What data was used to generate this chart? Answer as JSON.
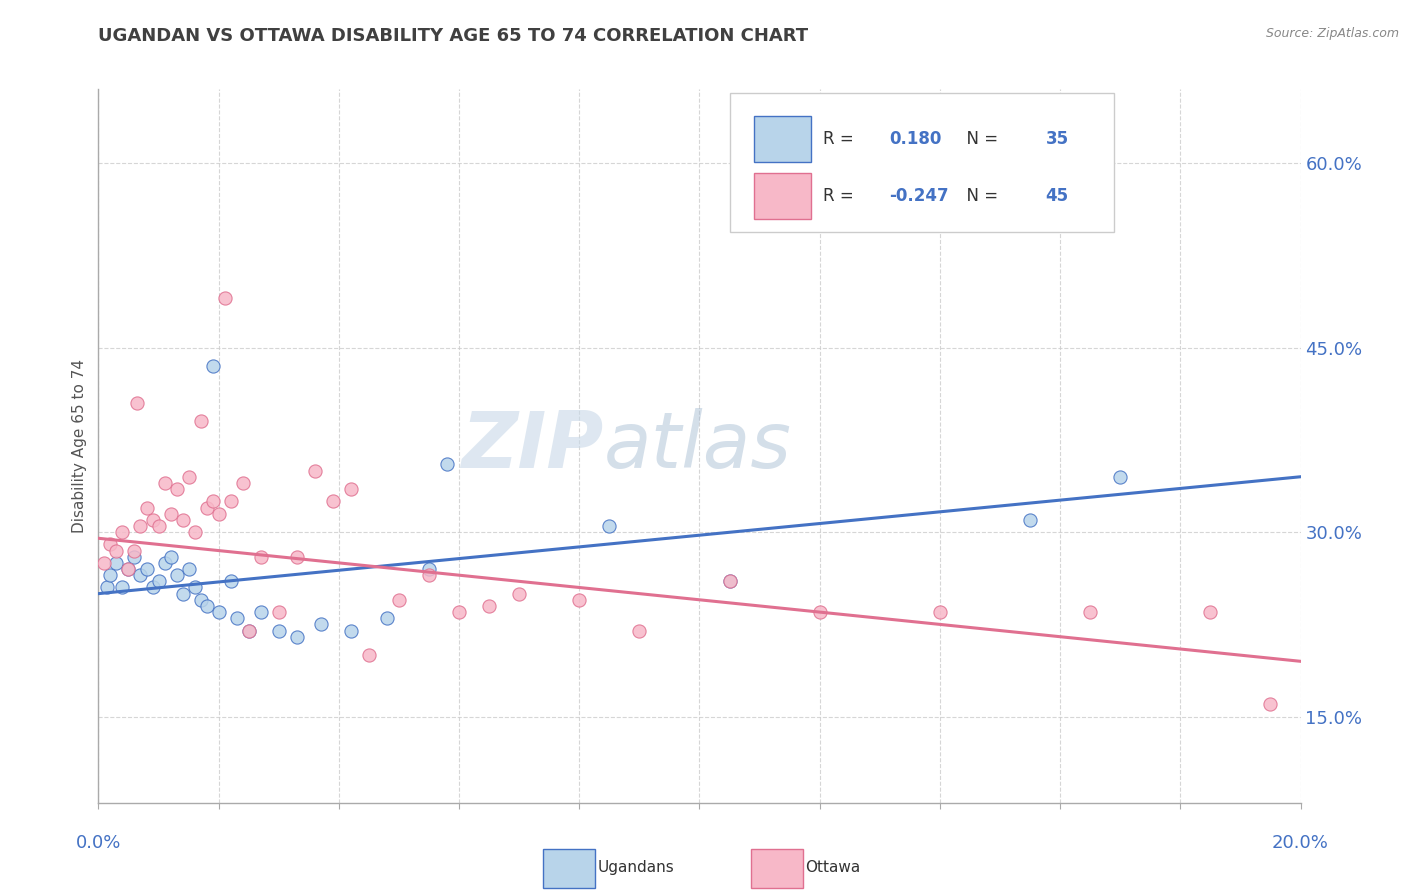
{
  "title": "UGANDAN VS OTTAWA DISABILITY AGE 65 TO 74 CORRELATION CHART",
  "source": "Source: ZipAtlas.com",
  "ylabel_label": "Disability Age 65 to 74",
  "xmin": 0.0,
  "xmax": 20.0,
  "ymin": 8.0,
  "ymax": 66.0,
  "yticks": [
    15.0,
    30.0,
    45.0,
    60.0
  ],
  "ugandan_color": "#b8d4ea",
  "ottawa_color": "#f7b8c8",
  "ugandan_line_color": "#4472c4",
  "ottawa_line_color": "#e07090",
  "legend_r_ugandan": "0.180",
  "legend_n_ugandan": "35",
  "legend_r_ottawa": "-0.247",
  "legend_n_ottawa": "45",
  "watermark_zip": "ZIP",
  "watermark_atlas": "atlas",
  "background_color": "#ffffff",
  "grid_color": "#cccccc",
  "title_color": "#404040",
  "tick_label_color": "#4472c4",
  "ugandan_points": [
    [
      0.15,
      25.5
    ],
    [
      0.2,
      26.5
    ],
    [
      0.3,
      27.5
    ],
    [
      0.4,
      25.5
    ],
    [
      0.5,
      27.0
    ],
    [
      0.6,
      28.0
    ],
    [
      0.7,
      26.5
    ],
    [
      0.8,
      27.0
    ],
    [
      0.9,
      25.5
    ],
    [
      1.0,
      26.0
    ],
    [
      1.1,
      27.5
    ],
    [
      1.2,
      28.0
    ],
    [
      1.3,
      26.5
    ],
    [
      1.4,
      25.0
    ],
    [
      1.5,
      27.0
    ],
    [
      1.6,
      25.5
    ],
    [
      1.7,
      24.5
    ],
    [
      1.8,
      24.0
    ],
    [
      1.9,
      43.5
    ],
    [
      2.0,
      23.5
    ],
    [
      2.2,
      26.0
    ],
    [
      2.3,
      23.0
    ],
    [
      2.5,
      22.0
    ],
    [
      2.7,
      23.5
    ],
    [
      3.0,
      22.0
    ],
    [
      3.3,
      21.5
    ],
    [
      3.7,
      22.5
    ],
    [
      4.2,
      22.0
    ],
    [
      4.8,
      23.0
    ],
    [
      5.5,
      27.0
    ],
    [
      5.8,
      35.5
    ],
    [
      8.5,
      30.5
    ],
    [
      10.5,
      26.0
    ],
    [
      15.5,
      31.0
    ],
    [
      17.0,
      34.5
    ]
  ],
  "ottawa_points": [
    [
      0.1,
      27.5
    ],
    [
      0.2,
      29.0
    ],
    [
      0.3,
      28.5
    ],
    [
      0.4,
      30.0
    ],
    [
      0.5,
      27.0
    ],
    [
      0.6,
      28.5
    ],
    [
      0.65,
      40.5
    ],
    [
      0.7,
      30.5
    ],
    [
      0.8,
      32.0
    ],
    [
      0.9,
      31.0
    ],
    [
      1.0,
      30.5
    ],
    [
      1.1,
      34.0
    ],
    [
      1.2,
      31.5
    ],
    [
      1.3,
      33.5
    ],
    [
      1.4,
      31.0
    ],
    [
      1.5,
      34.5
    ],
    [
      1.6,
      30.0
    ],
    [
      1.7,
      39.0
    ],
    [
      1.8,
      32.0
    ],
    [
      1.9,
      32.5
    ],
    [
      2.0,
      31.5
    ],
    [
      2.1,
      49.0
    ],
    [
      2.2,
      32.5
    ],
    [
      2.4,
      34.0
    ],
    [
      2.5,
      22.0
    ],
    [
      2.7,
      28.0
    ],
    [
      3.0,
      23.5
    ],
    [
      3.3,
      28.0
    ],
    [
      3.6,
      35.0
    ],
    [
      3.9,
      32.5
    ],
    [
      4.2,
      33.5
    ],
    [
      4.5,
      20.0
    ],
    [
      5.0,
      24.5
    ],
    [
      5.5,
      26.5
    ],
    [
      6.0,
      23.5
    ],
    [
      6.5,
      24.0
    ],
    [
      7.0,
      25.0
    ],
    [
      8.0,
      24.5
    ],
    [
      9.0,
      22.0
    ],
    [
      10.5,
      26.0
    ],
    [
      12.0,
      23.5
    ],
    [
      14.0,
      23.5
    ],
    [
      16.5,
      23.5
    ],
    [
      18.5,
      23.5
    ],
    [
      19.5,
      16.0
    ]
  ],
  "ugandan_trendline": [
    25.0,
    34.5
  ],
  "ottawa_trendline": [
    29.5,
    19.5
  ]
}
